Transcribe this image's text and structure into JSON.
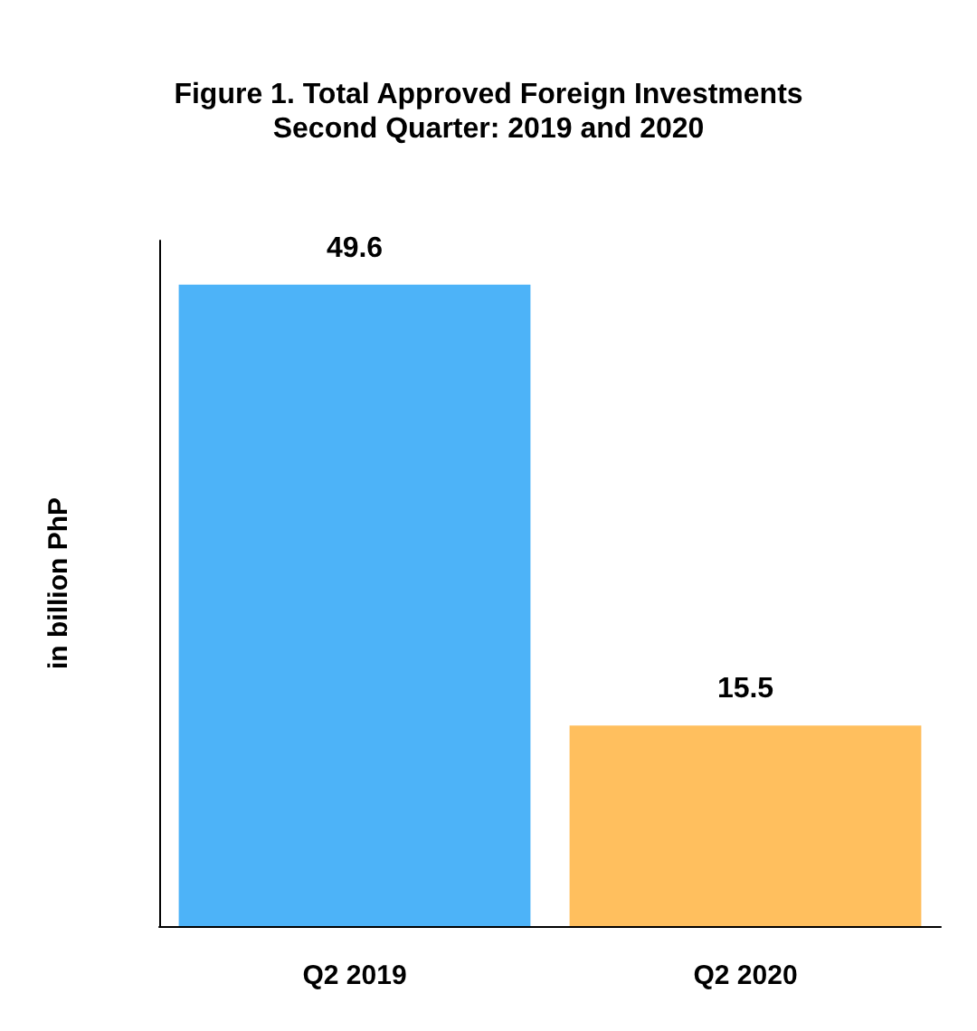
{
  "chart_data": {
    "type": "bar",
    "title": "Figure 1. Total Approved Foreign Investments\nSecond Quarter: 2019 and 2020",
    "ylabel": "in billion PhP",
    "categories": [
      "Q2 2019",
      "Q2 2020"
    ],
    "values": [
      49.6,
      15.5
    ],
    "colors": [
      "#4db3f8",
      "#ffbf5e"
    ],
    "ylim": [
      0,
      53
    ],
    "data_labels": true,
    "tick_labels": "x"
  }
}
